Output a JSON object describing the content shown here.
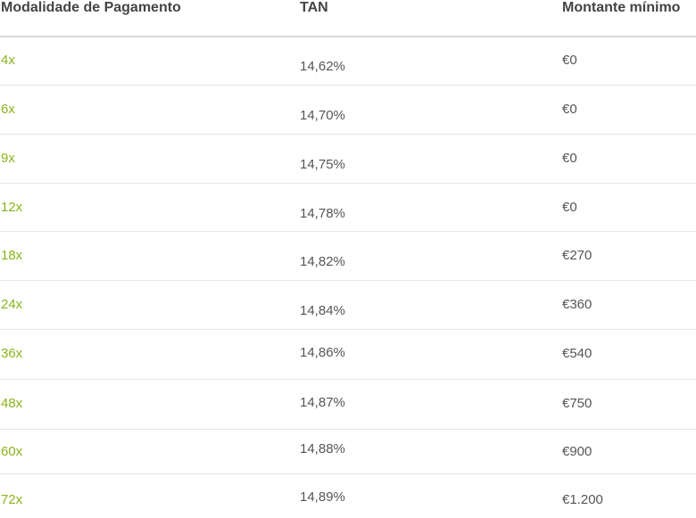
{
  "headers": {
    "mode": "Modalidade de Pagamento",
    "tan": "TAN",
    "min": "Montante mínimo"
  },
  "rows": [
    {
      "mode": "4x",
      "tan": "14,62%",
      "min": "€0"
    },
    {
      "mode": "6x",
      "tan": "14,70%",
      "min": "€0"
    },
    {
      "mode": "9x",
      "tan": "14,75%",
      "min": "€0"
    },
    {
      "mode": "12x",
      "tan": "14,78%",
      "min": "€0"
    },
    {
      "mode": "18x",
      "tan": "14,82%",
      "min": "€270"
    },
    {
      "mode": "24x",
      "tan": "14,84%",
      "min": "€360"
    },
    {
      "mode": "36x",
      "tan": "14,86%",
      "min": "€540"
    },
    {
      "mode": "48x",
      "tan": "14,87%",
      "min": "€750"
    },
    {
      "mode": "60x",
      "tan": "14,88%",
      "min": "€900"
    },
    {
      "mode": "72x",
      "tan": "14,89%",
      "min": "€1.200"
    }
  ],
  "colors": {
    "accent": "#8ab31c",
    "text": "#555555",
    "header_text": "#444444",
    "divider": "#e6e6e6"
  }
}
